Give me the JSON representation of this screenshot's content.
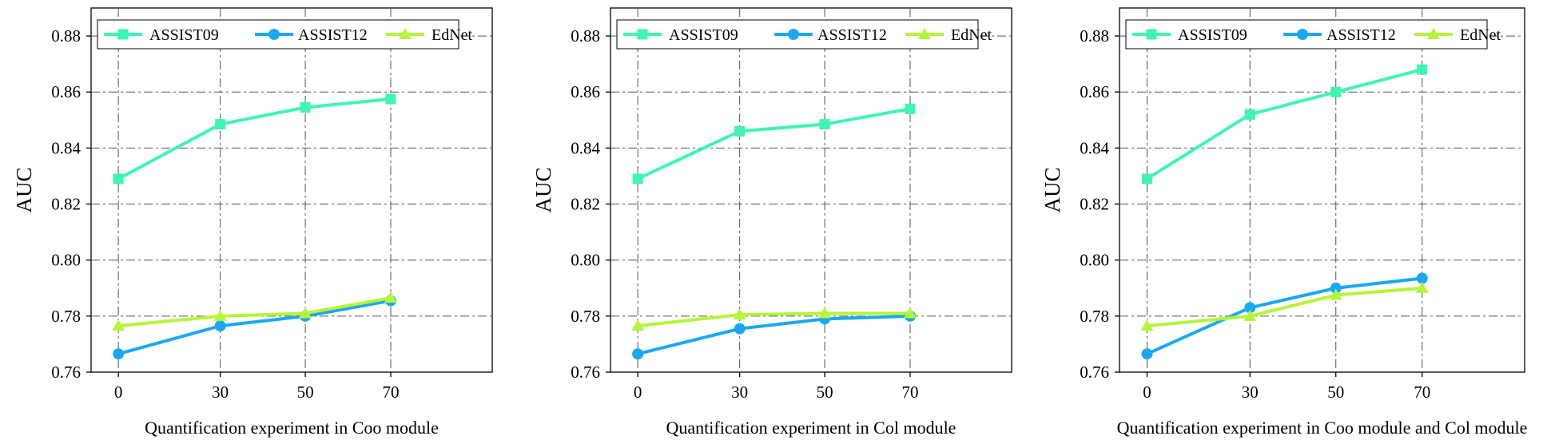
{
  "chart_data": [
    {
      "type": "line",
      "xlabel": "Quantification experiment in Coo module",
      "ylabel": "AUC",
      "x": [
        0,
        30,
        50,
        70
      ],
      "xticks": [
        "0",
        "30",
        "50",
        "70"
      ],
      "ylim": [
        0.76,
        0.89
      ],
      "yticks": [
        "0.76",
        "0.78",
        "0.80",
        "0.82",
        "0.84",
        "0.86",
        "0.88"
      ],
      "grid": true,
      "legend_position": "top",
      "series": [
        {
          "name": "ASSIST09",
          "marker": "square",
          "color": "#3ff5b2",
          "values": [
            0.829,
            0.8485,
            0.8545,
            0.8575
          ]
        },
        {
          "name": "ASSIST12",
          "marker": "circle",
          "color": "#1aa9f0",
          "values": [
            0.7665,
            0.7765,
            0.78,
            0.7855
          ]
        },
        {
          "name": "EdNet",
          "marker": "triangle",
          "color": "#b4f53a",
          "values": [
            0.7765,
            0.78,
            0.781,
            0.7865
          ]
        }
      ]
    },
    {
      "type": "line",
      "xlabel": "Quantification experiment in Col module",
      "ylabel": "AUC",
      "x": [
        0,
        30,
        50,
        70
      ],
      "xticks": [
        "0",
        "30",
        "50",
        "70"
      ],
      "ylim": [
        0.76,
        0.89
      ],
      "yticks": [
        "0.76",
        "0.78",
        "0.80",
        "0.82",
        "0.84",
        "0.86",
        "0.88"
      ],
      "grid": true,
      "legend_position": "top",
      "series": [
        {
          "name": "ASSIST09",
          "marker": "square",
          "color": "#3ff5b2",
          "values": [
            0.829,
            0.846,
            0.8485,
            0.854
          ]
        },
        {
          "name": "ASSIST12",
          "marker": "circle",
          "color": "#1aa9f0",
          "values": [
            0.7665,
            0.7755,
            0.779,
            0.78
          ]
        },
        {
          "name": "EdNet",
          "marker": "triangle",
          "color": "#b4f53a",
          "values": [
            0.7765,
            0.7805,
            0.781,
            0.781
          ]
        }
      ]
    },
    {
      "type": "line",
      "xlabel": "Quantification experiment in Coo module and Col module",
      "ylabel": "AUC",
      "x": [
        0,
        30,
        50,
        70
      ],
      "xticks": [
        "0",
        "30",
        "50",
        "70"
      ],
      "ylim": [
        0.76,
        0.89
      ],
      "yticks": [
        "0.76",
        "0.78",
        "0.80",
        "0.82",
        "0.84",
        "0.86",
        "0.88"
      ],
      "grid": true,
      "legend_position": "top",
      "series": [
        {
          "name": "ASSIST09",
          "marker": "square",
          "color": "#3ff5b2",
          "values": [
            0.829,
            0.852,
            0.86,
            0.868
          ]
        },
        {
          "name": "ASSIST12",
          "marker": "circle",
          "color": "#1aa9f0",
          "values": [
            0.7665,
            0.783,
            0.79,
            0.7935
          ]
        },
        {
          "name": "EdNet",
          "marker": "triangle",
          "color": "#b4f53a",
          "values": [
            0.7765,
            0.78,
            0.7875,
            0.79
          ]
        }
      ]
    }
  ]
}
